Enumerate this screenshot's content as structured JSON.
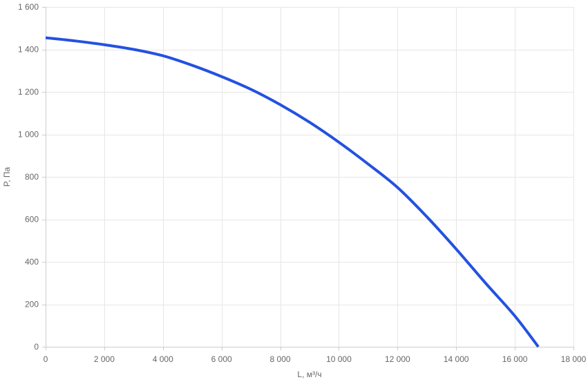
{
  "chart_data": {
    "type": "line",
    "title": "",
    "xlabel": "L, м³/ч",
    "ylabel": "P, Па",
    "xlim": [
      0,
      18000
    ],
    "ylim": [
      0,
      1600
    ],
    "x_ticks": [
      0,
      2000,
      4000,
      6000,
      8000,
      10000,
      12000,
      14000,
      16000,
      18000
    ],
    "y_ticks": [
      0,
      200,
      400,
      600,
      800,
      1000,
      1200,
      1400,
      1600
    ],
    "x_tick_labels": [
      "0",
      "2 000",
      "4 000",
      "6 000",
      "8 000",
      "10 000",
      "12 000",
      "14 000",
      "16 000",
      "18 000"
    ],
    "y_tick_labels": [
      "0",
      "200",
      "400",
      "600",
      "800",
      "1 000",
      "1 200",
      "1 400",
      "1 600"
    ],
    "grid": true,
    "legend": "none",
    "series": [
      {
        "color": "#2451e0",
        "x": [
          0,
          1000,
          2000,
          3000,
          4000,
          5000,
          6000,
          7000,
          8000,
          9000,
          10000,
          11000,
          12000,
          13000,
          14000,
          15000,
          16000,
          16800
        ],
        "y": [
          1455,
          1440,
          1422,
          1400,
          1370,
          1325,
          1272,
          1212,
          1140,
          1057,
          963,
          860,
          750,
          612,
          460,
          300,
          145,
          0
        ]
      }
    ]
  }
}
